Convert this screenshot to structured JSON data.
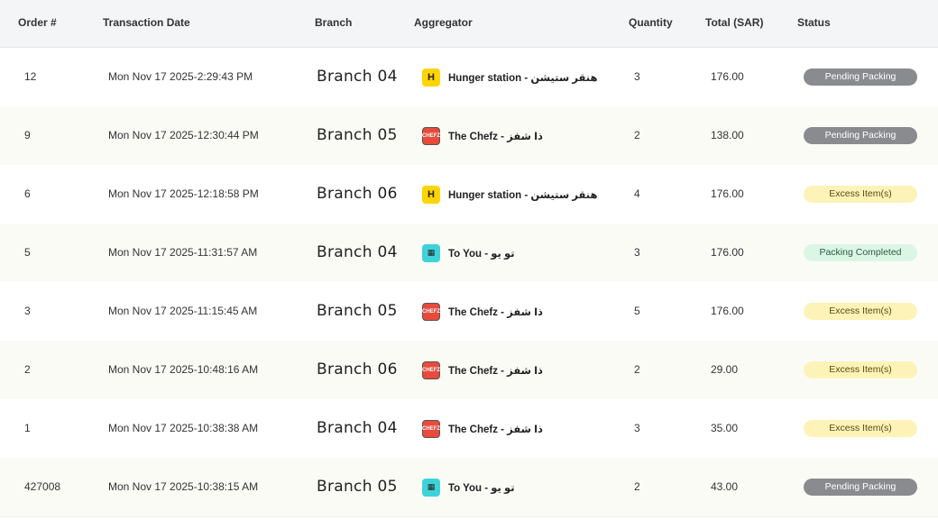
{
  "headers": {
    "order": "Order #",
    "date": "Transaction Date",
    "branch": "Branch",
    "aggregator": "Aggregator",
    "quantity": "Quantity",
    "total": "Total (SAR)",
    "status": "Status"
  },
  "rows": [
    {
      "order": "12",
      "date": "Mon Nov 17 2025-2:29:43 PM",
      "branch": "Branch 04",
      "aggregator": "Hunger station - هنقر ستيشن",
      "logo": "hunger",
      "quantity": "3",
      "total": "176.00",
      "status": "Pending Packing",
      "status_type": "pending"
    },
    {
      "order": "9",
      "date": "Mon Nov 17 2025-12:30:44 PM",
      "branch": "Branch 05",
      "aggregator": "The Chefz - ذا شفز",
      "logo": "chefz",
      "quantity": "2",
      "total": "138.00",
      "status": "Pending Packing",
      "status_type": "pending"
    },
    {
      "order": "6",
      "date": "Mon Nov 17 2025-12:18:58 PM",
      "branch": "Branch 06",
      "aggregator": "Hunger station - هنقر ستيشن",
      "logo": "hunger",
      "quantity": "4",
      "total": "176.00",
      "status": "Excess Item(s)",
      "status_type": "excess"
    },
    {
      "order": "5",
      "date": "Mon Nov 17 2025-11:31:57 AM",
      "branch": "Branch 04",
      "aggregator": "To You - تو يو",
      "logo": "toyou",
      "quantity": "3",
      "total": "176.00",
      "status": "Packing Completed",
      "status_type": "completed"
    },
    {
      "order": "3",
      "date": "Mon Nov 17 2025-11:15:45 AM",
      "branch": "Branch 05",
      "aggregator": "The Chefz - ذا شفز",
      "logo": "chefz",
      "quantity": "5",
      "total": "176.00",
      "status": "Excess Item(s)",
      "status_type": "excess"
    },
    {
      "order": "2",
      "date": "Mon Nov 17 2025-10:48:16 AM",
      "branch": "Branch 06",
      "aggregator": "The Chefz - ذا شفز",
      "logo": "chefz",
      "quantity": "2",
      "total": "29.00",
      "status": "Excess Item(s)",
      "status_type": "excess"
    },
    {
      "order": "1",
      "date": "Mon Nov 17 2025-10:38:38 AM",
      "branch": "Branch 04",
      "aggregator": "The Chefz - ذا شفز",
      "logo": "chefz",
      "quantity": "3",
      "total": "35.00",
      "status": "Excess Item(s)",
      "status_type": "excess"
    },
    {
      "order": "427008",
      "date": "Mon Nov 17 2025-10:38:15 AM",
      "branch": "Branch 05",
      "aggregator": "To You - تو يو",
      "logo": "toyou",
      "quantity": "2",
      "total": "43.00",
      "status": "Pending Packing",
      "status_type": "pending"
    }
  ],
  "logos": {
    "hunger": {
      "glyph": "H",
      "icon": "hunger-station-logo-icon",
      "color": "#ffd400"
    },
    "chefz": {
      "glyph": "CHEFZ",
      "icon": "the-chefz-logo-icon",
      "color": "#e84a3b"
    },
    "toyou": {
      "glyph": "▦",
      "icon": "to-you-logo-icon",
      "color": "#3fd3d9"
    }
  },
  "status_colors": {
    "pending": "#8a8b8f",
    "excess": "#fdf3b8",
    "completed": "#dcf6e6"
  }
}
